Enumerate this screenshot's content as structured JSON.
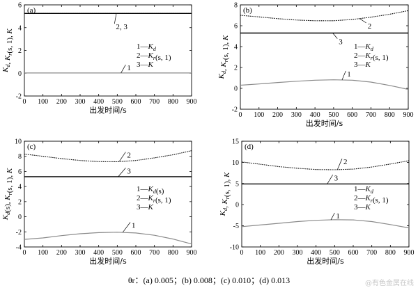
{
  "caption": "θr：(a) 0.005；(b) 0.008；(c) 0.010；(d) 0.013",
  "watermark": "@有色金属在线",
  "chart_data": [
    {
      "type": "line",
      "panel": "(a)",
      "xlabel": "出发时间/s",
      "ylabel": "Kd, Kr(s, 1), K",
      "xlim": [
        0,
        900
      ],
      "ylim": [
        -2,
        6
      ],
      "xticks": [
        0,
        100,
        200,
        300,
        400,
        500,
        600,
        700,
        800,
        900
      ],
      "yticks": [
        -2,
        0,
        2,
        4,
        6
      ],
      "legend": [
        "1—Kd",
        "2—Kr(s, 1)",
        "3—K"
      ],
      "series": [
        {
          "name": "1",
          "style": "gray",
          "x": [
            0,
            900
          ],
          "y": [
            0.02,
            0.02
          ]
        },
        {
          "name": "2",
          "style": "dotted",
          "x": [
            0,
            900
          ],
          "y": [
            5.25,
            5.25
          ]
        },
        {
          "name": "3",
          "style": "solid",
          "x": [
            0,
            900
          ],
          "y": [
            5.25,
            5.25
          ]
        }
      ],
      "annotations": [
        {
          "text": "2, 3",
          "x": 500,
          "y": 4.1,
          "lx": 495,
          "ly": 5.25
        },
        {
          "text": "1",
          "x": 560,
          "y": 0.5,
          "lx": 520,
          "ly": 0.02
        }
      ]
    },
    {
      "type": "line",
      "panel": "(b)",
      "xlabel": "出发时间/s",
      "ylabel": "Kd, Kr(s, 1), K",
      "xlim": [
        0,
        900
      ],
      "ylim": [
        -2,
        8
      ],
      "xticks": [
        0,
        100,
        200,
        300,
        400,
        500,
        600,
        700,
        800,
        900
      ],
      "yticks": [
        -2,
        0,
        2,
        4,
        6,
        8
      ],
      "legend": [
        "1—Kd",
        "2—Kr(s, 1)",
        "3—K"
      ],
      "series": [
        {
          "name": "1",
          "style": "gray",
          "x": [
            0,
            100,
            200,
            300,
            400,
            500,
            600,
            700,
            800,
            900
          ],
          "y": [
            0.3,
            0.42,
            0.56,
            0.68,
            0.78,
            0.82,
            0.78,
            0.6,
            0.28,
            -0.1
          ]
        },
        {
          "name": "2",
          "style": "dotted",
          "x": [
            0,
            100,
            200,
            300,
            400,
            500,
            600,
            700,
            800,
            900
          ],
          "y": [
            7.0,
            6.85,
            6.68,
            6.55,
            6.48,
            6.48,
            6.6,
            6.82,
            7.1,
            7.45
          ]
        },
        {
          "name": "3",
          "style": "solid",
          "x": [
            0,
            900
          ],
          "y": [
            5.3,
            5.3
          ]
        }
      ],
      "annotations": [
        {
          "text": "2",
          "x": 690,
          "y": 6.0,
          "lx": 640,
          "ly": 6.68
        },
        {
          "text": "3",
          "x": 535,
          "y": 4.5,
          "lx": 495,
          "ly": 5.3
        },
        {
          "text": "1",
          "x": 580,
          "y": 1.4,
          "lx": 545,
          "ly": 0.8
        }
      ]
    },
    {
      "type": "line",
      "panel": "(c)",
      "xlabel": "出发时间/s",
      "ylabel": "Kd(s), Kr(s, 1), K",
      "xlim": [
        0,
        900
      ],
      "ylim": [
        -4,
        10
      ],
      "xticks": [
        0,
        100,
        200,
        300,
        400,
        500,
        600,
        700,
        800,
        900
      ],
      "yticks": [
        -4,
        -2,
        0,
        2,
        4,
        6,
        8,
        10
      ],
      "legend": [
        "1—Kd(s)",
        "2—Kr(s, 1)",
        "3—K"
      ],
      "series": [
        {
          "name": "1",
          "style": "gray",
          "x": [
            0,
            100,
            200,
            300,
            400,
            500,
            600,
            700,
            800,
            900
          ],
          "y": [
            -3.0,
            -2.8,
            -2.5,
            -2.25,
            -2.1,
            -2.05,
            -2.15,
            -2.45,
            -2.95,
            -3.6
          ]
        },
        {
          "name": "2",
          "style": "dotted",
          "x": [
            0,
            100,
            200,
            300,
            400,
            500,
            600,
            700,
            800,
            900
          ],
          "y": [
            8.3,
            8.0,
            7.7,
            7.45,
            7.3,
            7.28,
            7.45,
            7.8,
            8.2,
            8.75
          ]
        },
        {
          "name": "3",
          "style": "solid",
          "x": [
            0,
            900
          ],
          "y": [
            5.3,
            5.3
          ]
        }
      ],
      "annotations": [
        {
          "text": "2",
          "x": 560,
          "y": 8.2,
          "lx": 510,
          "ly": 7.3
        },
        {
          "text": "3",
          "x": 560,
          "y": 6.1,
          "lx": 505,
          "ly": 5.3
        },
        {
          "text": "1",
          "x": 585,
          "y": -1.1,
          "lx": 530,
          "ly": -2.05
        }
      ]
    },
    {
      "type": "line",
      "panel": "(d)",
      "xlabel": "出发时间/s",
      "ylabel": "Kd, Kr(s, 1), K",
      "xlim": [
        0,
        900
      ],
      "ylim": [
        -10,
        15
      ],
      "xticks": [
        0,
        100,
        200,
        300,
        400,
        500,
        600,
        700,
        800,
        900
      ],
      "yticks": [
        -10,
        -5,
        0,
        5,
        10,
        15
      ],
      "legend": [
        "1—Kd",
        "2—Kr(s, 1)",
        "3—K"
      ],
      "series": [
        {
          "name": "1",
          "style": "gray",
          "x": [
            0,
            100,
            200,
            300,
            400,
            500,
            600,
            700,
            800,
            900
          ],
          "y": [
            -5.2,
            -4.8,
            -4.4,
            -4.0,
            -3.7,
            -3.55,
            -3.6,
            -4.0,
            -4.7,
            -5.5
          ]
        },
        {
          "name": "2",
          "style": "dotted",
          "x": [
            0,
            100,
            200,
            300,
            400,
            500,
            600,
            700,
            800,
            900
          ],
          "y": [
            10.1,
            9.55,
            9.0,
            8.6,
            8.3,
            8.25,
            8.4,
            8.9,
            9.6,
            10.4
          ]
        },
        {
          "name": "3",
          "style": "solid",
          "x": [
            0,
            900
          ],
          "y": [
            4.9,
            4.9
          ]
        }
      ],
      "annotations": [
        {
          "text": "2",
          "x": 555,
          "y": 10.2,
          "lx": 515,
          "ly": 8.3
        },
        {
          "text": "3",
          "x": 505,
          "y": 6.4,
          "lx": 460,
          "ly": 4.9
        },
        {
          "text": "1",
          "x": 515,
          "y": -2.6,
          "lx": 480,
          "ly": -3.6
        }
      ]
    }
  ]
}
